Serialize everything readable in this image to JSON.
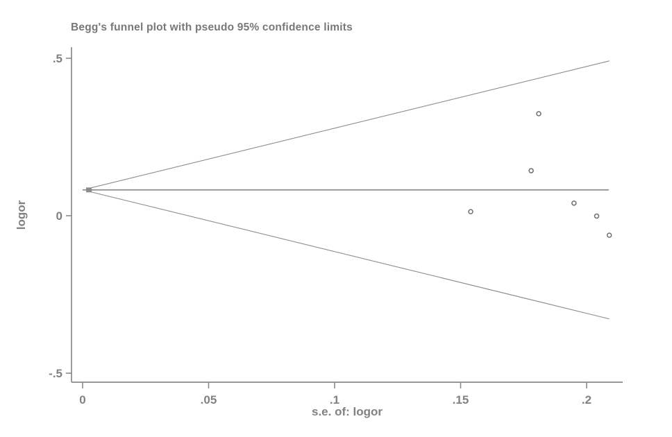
{
  "colors": {
    "background": "#ffffff",
    "axis_line": "#8a8a8a",
    "funnel_line": "#8c8c8c",
    "center_line": "#8c8c8c",
    "marker_stroke": "#6e6e6e",
    "marker_fill": "#ffffff",
    "text": "#818181",
    "title_text": "#787878"
  },
  "chart_data": {
    "type": "scatter",
    "title": "Begg's funnel plot with pseudo 95% confidence limits",
    "xlabel": "s.e. of: logor",
    "ylabel": "logor",
    "xlim": [
      0,
      0.214
    ],
    "ylim": [
      -0.53,
      0.535
    ],
    "grid": false,
    "legend": null,
    "x_ticks": [
      {
        "value": 0,
        "label": "0"
      },
      {
        "value": 0.05,
        "label": ".05"
      },
      {
        "value": 0.1,
        "label": ".1"
      },
      {
        "value": 0.15,
        "label": ".15"
      },
      {
        "value": 0.2,
        "label": ".2"
      }
    ],
    "y_ticks": [
      {
        "value": 0.5,
        "label": ".5"
      },
      {
        "value": 0,
        "label": "0"
      },
      {
        "value": -0.5,
        "label": "-.5"
      }
    ],
    "pooled_logor": 0.082,
    "confidence_level": "95%",
    "z_value": 1.96,
    "se_range": [
      0,
      0.209
    ],
    "points": [
      {
        "se": 0.154,
        "logor": 0.013
      },
      {
        "se": 0.178,
        "logor": 0.143
      },
      {
        "se": 0.181,
        "logor": 0.324
      },
      {
        "se": 0.195,
        "logor": 0.04
      },
      {
        "se": 0.204,
        "logor": -0.001
      },
      {
        "se": 0.209,
        "logor": -0.062
      }
    ],
    "lines": {
      "center": {
        "x": [
          0.0,
          0.2088
        ],
        "y": [
          0.082,
          0.082
        ]
      },
      "upper_ci": {
        "x": [
          0.0025,
          0.209
        ],
        "y": [
          0.0869,
          0.4916
        ]
      },
      "lower_ci": {
        "x": [
          0.0025,
          0.209
        ],
        "y": [
          0.0771,
          -0.3276
        ]
      }
    }
  }
}
